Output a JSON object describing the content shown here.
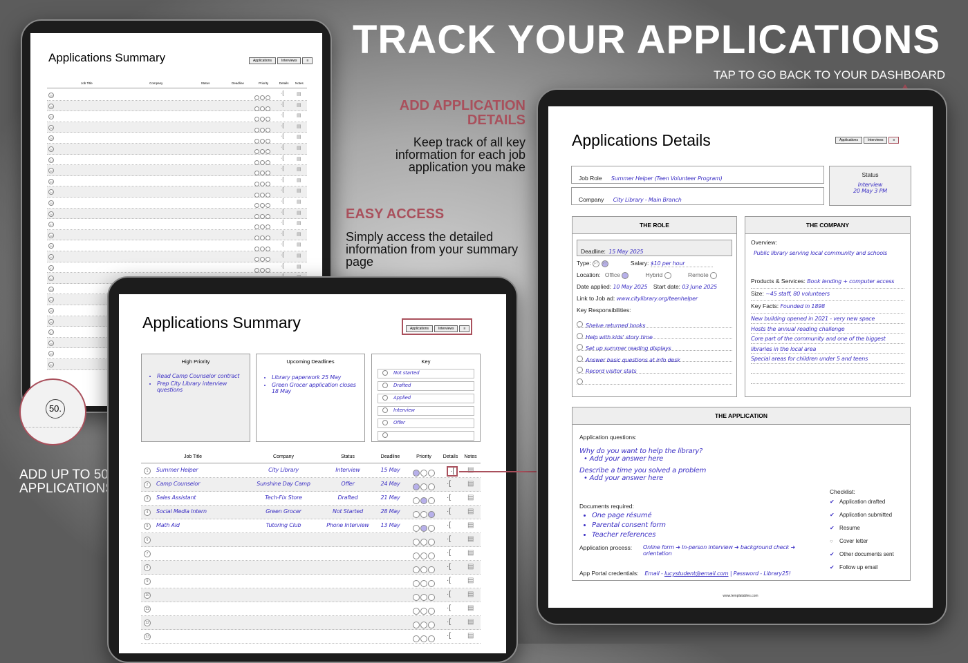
{
  "hero": {
    "title": "TRACK YOUR APPLICATIONS",
    "subtitle": "TAP TO GO BACK TO YOUR DASHBOARD"
  },
  "callouts": [
    {
      "heading": "ADD APPLICATION DETAILS",
      "text": "Keep track of all key information for each job application you make"
    },
    {
      "heading": "EASY ACCESS",
      "text": "Simply access the detailed information from your summary page"
    },
    {
      "heading": "",
      "text": "ADD UP TO 50 APPLICATIONS"
    }
  ],
  "accent": "#a9505c",
  "ink": "#3b2fc4",
  "nav": {
    "applications": "Applications",
    "interviews": "Interviews",
    "menu_icon": "menu-icon"
  },
  "back_summary": {
    "title_bold": "Applications",
    "title_light": "Summary",
    "columns": [
      "Job Title",
      "Company",
      "Status",
      "Deadline",
      "Priority",
      "Details",
      "Notes"
    ],
    "first_row": 25,
    "last_row": 50,
    "zoom_badge": "50."
  },
  "summary": {
    "title_bold": "Applications",
    "title_light": "Summary",
    "high_priority": {
      "heading": "High Priority",
      "items": [
        "Read Camp Counselor contract",
        "Prep City Library interview questions"
      ]
    },
    "deadlines": {
      "heading": "Upcoming Deadlines",
      "items": [
        "Library paperwork 25 May",
        "Green Grocer application closes 18 May"
      ]
    },
    "key": {
      "heading": "Key",
      "items": [
        "Not started",
        "Drafted",
        "Applied",
        "Interview",
        "Offer",
        ""
      ]
    },
    "columns": [
      "Job Title",
      "Company",
      "Status",
      "Deadline",
      "Priority",
      "Details",
      "Notes"
    ],
    "rows": [
      {
        "n": "1",
        "title": "Summer Helper",
        "company": "City Library",
        "status": "Interview",
        "deadline": "15 May",
        "priority": 1
      },
      {
        "n": "2",
        "title": "Camp Counselor",
        "company": "Sunshine Day Camp",
        "status": "Offer",
        "deadline": "24 May",
        "priority": 1
      },
      {
        "n": "3",
        "title": "Sales Assistant",
        "company": "Tech-Fix Store",
        "status": "Drafted",
        "deadline": "21 May",
        "priority": 2
      },
      {
        "n": "4",
        "title": "Social Media Intern",
        "company": "Green Grocer",
        "status": "Not Started",
        "deadline": "28 May",
        "priority": 3
      },
      {
        "n": "5",
        "title": "Math Aid",
        "company": "Tutoring Club",
        "status": "Phone Interview",
        "deadline": "13 May",
        "priority": 2
      },
      {
        "n": "6"
      },
      {
        "n": "7"
      },
      {
        "n": "8"
      },
      {
        "n": "9"
      },
      {
        "n": "10"
      },
      {
        "n": "11"
      },
      {
        "n": "12"
      },
      {
        "n": "13"
      }
    ]
  },
  "details": {
    "title_bold": "Applications",
    "title_light": "Details",
    "job_role_label": "Job Role",
    "job_role": "Summer Helper (Teen Volunteer Program)",
    "company_label": "Company",
    "company": "City Library - Main Branch",
    "status_label": "Status",
    "status": "Interview",
    "status_date": "20 May 3 PM",
    "role": {
      "heading": "THE ROLE",
      "deadline_label": "Deadline:",
      "deadline": "15 May 2025",
      "type_label": "Type:",
      "type_options": [
        "FT",
        "PT"
      ],
      "type_selected": "PT",
      "salary_label": "Salary:",
      "salary": "$10 per hour",
      "location_label": "Location:",
      "location_options": [
        "Office",
        "Hybrid",
        "Remote"
      ],
      "location_selected": "Office",
      "date_applied_label": "Date applied:",
      "date_applied": "10 May 2025",
      "start_label": "Start date:",
      "start_date": "03 June 2025",
      "link_label": "Link to Job ad:",
      "link": "www.citylibrary.org/teenhelper",
      "resp_label": "Key Responsibilities:",
      "responsibilities": [
        "Shelve returned books",
        "Help with kids' story time",
        "Set up summer reading displays",
        "Answer basic questions at info desk",
        "Record visitor stats",
        ""
      ]
    },
    "company_section": {
      "heading": "THE COMPANY",
      "overview_label": "Overview:",
      "overview": "Public library serving local community and schools",
      "products_label": "Products & Services:",
      "products": "Book lending + computer access",
      "size_label": "Size:",
      "size": "~45 staff, 80 volunteers",
      "facts_label": "Key Facts:",
      "facts": [
        "Founded in 1898",
        "New building opened in 2021 - very new space",
        "Hosts the annual reading challenge",
        "Core part of the community and one of the biggest",
        "libraries in the local area",
        "Special areas for children under 5 and teens"
      ]
    },
    "application": {
      "heading": "THE APPLICATION",
      "questions_label": "Application questions:",
      "questions": [
        {
          "q": "Why do you want to help the library?",
          "a": "Add your answer here"
        },
        {
          "q": "Describe a time you solved a problem",
          "a": "Add your answer here"
        }
      ],
      "docs_label": "Documents required:",
      "docs": [
        "One page résumé",
        "Parental consent form",
        "Teacher references"
      ],
      "process_label": "Application process:",
      "process": "Online form ➜ In-person interview ➜ background check ➜ orientation",
      "portal_label": "App Portal credentials:",
      "portal_prefix": "Email - ",
      "portal_email": "lucystudent@email.com",
      "portal_suffix": " | Password - Library25!",
      "checklist_label": "Checklist:",
      "checklist": [
        {
          "label": "Application drafted",
          "done": true
        },
        {
          "label": "Application submitted",
          "done": true
        },
        {
          "label": "Resume",
          "done": true
        },
        {
          "label": "Cover letter",
          "done": false
        },
        {
          "label": "Other documents sent",
          "done": true
        },
        {
          "label": "Follow up email",
          "done": true
        }
      ]
    },
    "footer": "www.templatables.com"
  }
}
